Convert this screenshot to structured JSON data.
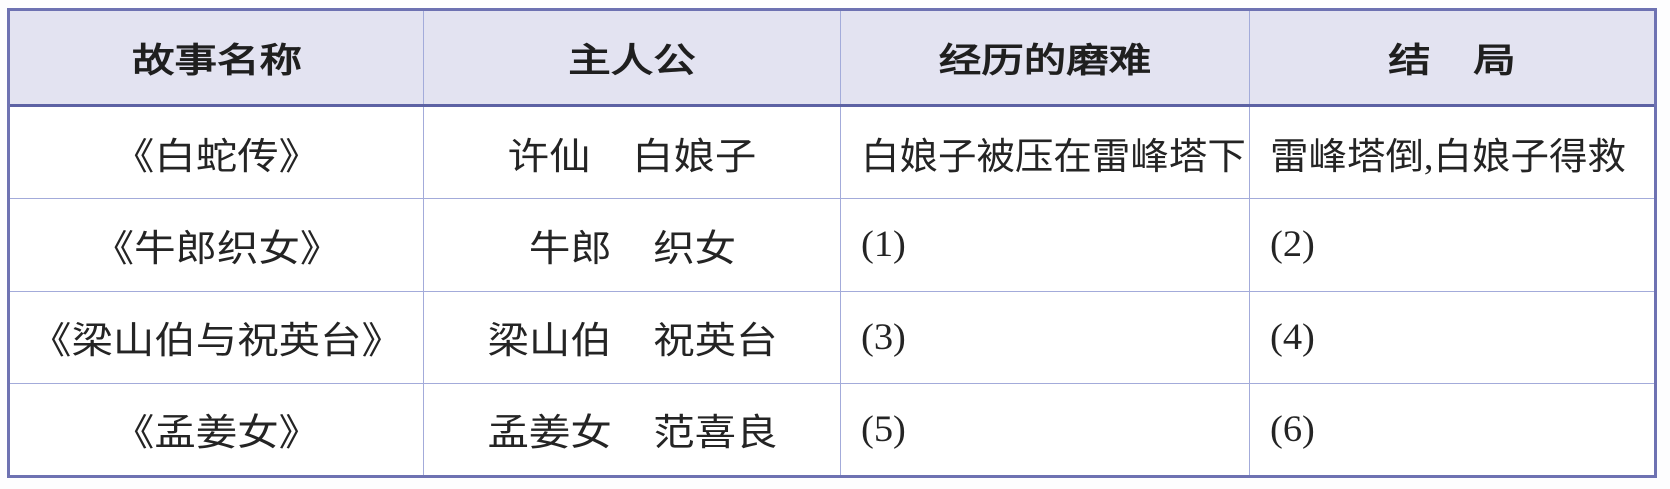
{
  "colors": {
    "header_bg": "#e3e3f1",
    "outer_border": "#6e72b2",
    "header_rule": "#5d62a4",
    "grid_line": "#a3abda",
    "text": "#1f1f1f"
  },
  "table": {
    "columns": [
      {
        "label": "故事名称"
      },
      {
        "label": "主人公"
      },
      {
        "label": "经历的磨难"
      },
      {
        "label": "结　局"
      }
    ],
    "rows": [
      {
        "cells": [
          "《白蛇传》",
          "许仙　白娘子",
          "白娘子被压在雷峰塔下",
          "雷峰塔倒,白娘子得救"
        ]
      },
      {
        "cells": [
          "《牛郎织女》",
          "牛郎　织女",
          "(1)",
          "(2)"
        ]
      },
      {
        "cells": [
          "《梁山伯与祝英台》",
          "梁山伯　祝英台",
          "(3)",
          "(4)"
        ]
      },
      {
        "cells": [
          "《孟姜女》",
          "孟姜女　范喜良",
          "(5)",
          "(6)"
        ]
      }
    ]
  }
}
